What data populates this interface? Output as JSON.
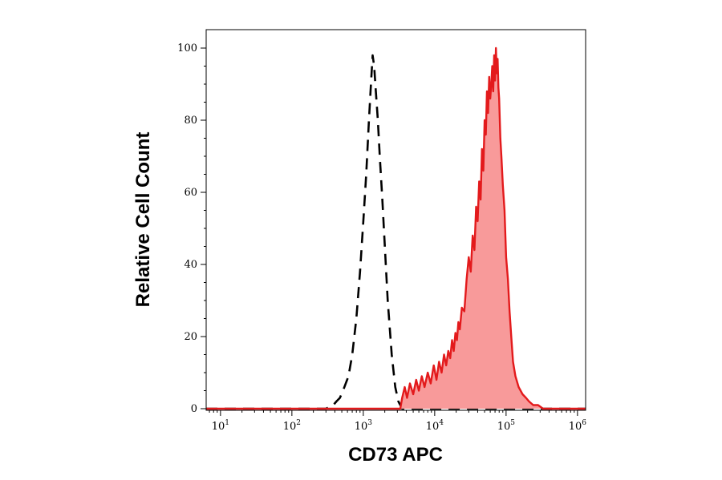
{
  "chart_data": {
    "type": "area",
    "xlabel": "CD73 APC",
    "ylabel": "Relative Cell Count",
    "x_scale": "log10",
    "xlim": [
      6.3,
      1300000
    ],
    "ylim": [
      0,
      105
    ],
    "x_ticks": [
      {
        "value": 10,
        "base": "10",
        "exp": "1"
      },
      {
        "value": 100,
        "base": "10",
        "exp": "2"
      },
      {
        "value": 1000,
        "base": "10",
        "exp": "3"
      },
      {
        "value": 10000,
        "base": "10",
        "exp": "4"
      },
      {
        "value": 100000,
        "base": "10",
        "exp": "5"
      },
      {
        "value": 1000000,
        "base": "10",
        "exp": "6"
      }
    ],
    "y_ticks": [
      {
        "value": 0,
        "label": "0"
      },
      {
        "value": 20,
        "label": "20"
      },
      {
        "value": 40,
        "label": "40"
      },
      {
        "value": 60,
        "label": "60"
      },
      {
        "value": 80,
        "label": "80"
      },
      {
        "value": 100,
        "label": "100"
      }
    ],
    "grid": false,
    "legend": "none",
    "series": [
      {
        "style": "dashed",
        "color": "#000000",
        "fill": "none",
        "x": [
          6.3,
          300,
          380,
          420,
          470,
          520,
          620,
          700,
          800,
          900,
          1000,
          1100,
          1200,
          1280,
          1350,
          1420,
          1500,
          1600,
          1700,
          1850,
          2000,
          2200,
          2500,
          2800,
          3100,
          3500,
          1300000
        ],
        "y": [
          0,
          0,
          1,
          2,
          3,
          5,
          9,
          15,
          25,
          38,
          52,
          65,
          80,
          90,
          98,
          95,
          88,
          80,
          70,
          58,
          45,
          30,
          15,
          6,
          2,
          0,
          0
        ]
      },
      {
        "style": "solid",
        "color": "#e31a1c",
        "fill": "#f89a9a",
        "x": [
          6.3,
          3300,
          3500,
          3800,
          4100,
          4500,
          5000,
          5500,
          6000,
          6600,
          7200,
          8000,
          8800,
          9700,
          10600,
          11500,
          12500,
          13500,
          14500,
          15500,
          16500,
          17500,
          18500,
          19500,
          20500,
          21500,
          22500,
          24000,
          26000,
          28000,
          30000,
          32000,
          34000,
          36000,
          38000,
          40000,
          42000,
          44000,
          46000,
          48000,
          50000,
          52000,
          54000,
          56000,
          58000,
          60000,
          62000,
          64000,
          66000,
          68000,
          70000,
          72000,
          74000,
          76000,
          78000,
          80000,
          83000,
          86000,
          90000,
          95000,
          100000,
          106000,
          112000,
          118000,
          125000,
          135000,
          150000,
          170000,
          190000,
          210000,
          240000,
          280000,
          330000,
          390000,
          450000,
          1300000
        ],
        "y": [
          0,
          0,
          3,
          6,
          3,
          7,
          4,
          8,
          5,
          9,
          6,
          10,
          7,
          12,
          8,
          13,
          10,
          15,
          12,
          16,
          14,
          19,
          16,
          21,
          19,
          24,
          22,
          28,
          27,
          36,
          42,
          38,
          48,
          44,
          56,
          52,
          63,
          58,
          72,
          66,
          80,
          76,
          88,
          82,
          92,
          86,
          90,
          95,
          88,
          98,
          91,
          100,
          93,
          97,
          89,
          86,
          75,
          70,
          62,
          55,
          42,
          36,
          27,
          20,
          13,
          9,
          6,
          4,
          3,
          2,
          1,
          1,
          0,
          0,
          0,
          0
        ]
      }
    ]
  }
}
